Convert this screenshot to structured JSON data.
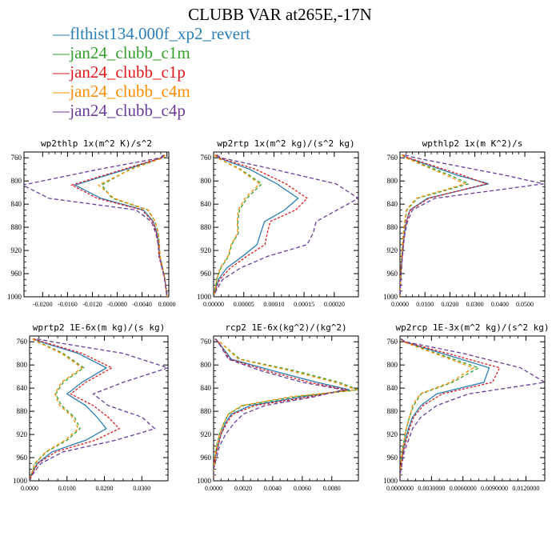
{
  "figure": {
    "title": "CLUBB VAR at265E,-17N"
  },
  "series": [
    {
      "name": "flthist134.000f_xp2_revert",
      "color": "#2a7fb6",
      "dash": ""
    },
    {
      "name": "jan24_clubb_c1m",
      "color": "#34a02c",
      "dash": "4,3"
    },
    {
      "name": "jan24_clubb_c1p",
      "color": "#e31a1c",
      "dash": "3,2"
    },
    {
      "name": "jan24_clubb_c4m",
      "color": "#ff8c00",
      "dash": "4,3"
    },
    {
      "name": "jan24_clubb_c4p",
      "color": "#6a3d9a",
      "dash": "5,3"
    }
  ],
  "chart_data": [
    {
      "type": "line",
      "title": "wp2thlp  1x(m^2 K)/s^2",
      "xlim": [
        -0.023,
        0.0003
      ],
      "ylim": [
        1000,
        750
      ],
      "xticks": [
        "-0.0200",
        "-0.0160",
        "-0.0120",
        "-0.0080",
        "-0.0040",
        "0.0000"
      ],
      "xtick_values": [
        -0.02,
        -0.016,
        -0.012,
        -0.008,
        -0.004,
        0.0
      ],
      "yticks": [
        "760",
        "800",
        "840",
        "880",
        "920",
        "960",
        "1000"
      ],
      "ytick_values": [
        760,
        800,
        840,
        880,
        920,
        960,
        1000
      ],
      "y": [
        755,
        760,
        780,
        807,
        830,
        850,
        870,
        890,
        910,
        930,
        950,
        970,
        990,
        1000
      ],
      "series": [
        {
          "values": [
            -0.0003,
            -0.0008,
            -0.0066,
            -0.0148,
            -0.0106,
            -0.0038,
            -0.0022,
            -0.0016,
            -0.0013,
            -0.0012,
            -0.0007,
            -0.0003,
            -0.0001,
            0.0
          ]
        },
        {
          "values": [
            -0.0003,
            -0.0006,
            -0.006,
            -0.0105,
            -0.0088,
            -0.0031,
            -0.0019,
            -0.0014,
            -0.0012,
            -0.0011,
            -0.0007,
            -0.0003,
            -0.0001,
            0.0
          ]
        },
        {
          "values": [
            -0.0003,
            -0.0009,
            -0.007,
            -0.0153,
            -0.0112,
            -0.004,
            -0.0023,
            -0.0017,
            -0.0014,
            -0.0013,
            -0.0008,
            -0.0003,
            -0.0001,
            0.0
          ]
        },
        {
          "values": [
            -0.0003,
            -0.0006,
            -0.0058,
            -0.011,
            -0.0085,
            -0.003,
            -0.0019,
            -0.0014,
            -0.0012,
            -0.0011,
            -0.0007,
            -0.0003,
            -0.0001,
            0.0
          ]
        },
        {
          "values": [
            -0.0006,
            -0.001,
            -0.011,
            -0.0232,
            -0.019,
            -0.005,
            -0.0025,
            -0.0018,
            -0.0014,
            -0.0012,
            -0.0008,
            -0.0004,
            -0.0001,
            0.0
          ]
        }
      ]
    },
    {
      "type": "line",
      "title": "wp2rtp  1x(m^2 kg)/(s^2 kg)",
      "xlim": [
        0,
        0.00024
      ],
      "ylim": [
        1000,
        750
      ],
      "xticks": [
        "0.00000",
        "0.00005",
        "0.00010",
        "0.00015",
        "0.00020"
      ],
      "xtick_values": [
        0,
        5e-05,
        0.0001,
        0.00015,
        0.0002
      ],
      "yticks": [
        "760",
        "800",
        "840",
        "880",
        "920",
        "960",
        "1000"
      ],
      "ytick_values": [
        760,
        800,
        840,
        880,
        920,
        960,
        1000
      ],
      "y": [
        755,
        760,
        780,
        805,
        830,
        850,
        870,
        890,
        910,
        930,
        950,
        970,
        990,
        1000
      ],
      "series": [
        {
          "values": [
            3e-06,
            8e-06,
            6e-05,
            0.000105,
            0.00014,
            0.000118,
            8.45e-05,
            7.8e-05,
            7.2e-05,
            4.8e-05,
            2.2e-05,
            8e-06,
            2e-06,
            0.0
          ]
        },
        {
          "values": [
            2e-06,
            6e-06,
            4.5e-05,
            8e-05,
            5.5e-05,
            4.3e-05,
            4e-05,
            4.1e-05,
            3e-05,
            2.5e-05,
            1.2e-05,
            5e-06,
            2e-06,
            0.0
          ]
        },
        {
          "values": [
            3e-06,
            9e-06,
            7e-05,
            0.00012,
            0.000155,
            0.000136,
            9.4e-05,
            8.9e-05,
            8.5e-05,
            5.5e-05,
            2.8e-05,
            1e-05,
            3e-06,
            0.0
          ]
        },
        {
          "values": [
            2e-06,
            6e-06,
            4.3e-05,
            7.6e-05,
            5.2e-05,
            4.1e-05,
            3.9e-05,
            4e-05,
            2.9e-05,
            2.4e-05,
            1.1e-05,
            5e-06,
            2e-06,
            0.0
          ]
        },
        {
          "values": [
            5e-06,
            1.2e-05,
            0.0001,
            0.000203,
            0.00024,
            0.000205,
            0.00017,
            0.000165,
            0.000155,
            9e-05,
            4.5e-05,
            1.5e-05,
            4e-06,
            0.0
          ]
        }
      ]
    },
    {
      "type": "line",
      "title": "wpthlp2  1x(m K^2)/s",
      "xlim": [
        0,
        0.058
      ],
      "ylim": [
        1000,
        750
      ],
      "xticks": [
        "0.0000",
        "0.0100",
        "0.0200",
        "0.0300",
        "0.0400",
        "0.0500"
      ],
      "xtick_values": [
        0,
        0.01,
        0.02,
        0.03,
        0.04,
        0.05
      ],
      "yticks": [
        "760",
        "800",
        "840",
        "880",
        "920",
        "960",
        "1000"
      ],
      "ytick_values": [
        760,
        800,
        840,
        880,
        920,
        960,
        1000
      ],
      "y": [
        755,
        760,
        790,
        805,
        830,
        850,
        870,
        890,
        910,
        930,
        950,
        970,
        990,
        1000
      ],
      "series": [
        {
          "values": [
            0.001,
            0.003,
            0.023,
            0.0355,
            0.011,
            0.004,
            0.0025,
            0.0018,
            0.0012,
            0.0008,
            0.0005,
            0.0003,
            0.0001,
            0.0
          ]
        },
        {
          "values": [
            0.0008,
            0.0025,
            0.02,
            0.0275,
            0.007,
            0.0028,
            0.002,
            0.0014,
            0.001,
            0.0007,
            0.0004,
            0.0002,
            0.0001,
            0.0
          ]
        },
        {
          "values": [
            0.0011,
            0.0032,
            0.025,
            0.0345,
            0.0115,
            0.0042,
            0.0026,
            0.0019,
            0.0013,
            0.0009,
            0.0005,
            0.0003,
            0.0001,
            0.0
          ]
        },
        {
          "values": [
            0.0007,
            0.0022,
            0.0185,
            0.026,
            0.0065,
            0.0026,
            0.0019,
            0.0013,
            0.001,
            0.0007,
            0.0004,
            0.0002,
            0.0001,
            0.0
          ]
        },
        {
          "values": [
            0.002,
            0.006,
            0.042,
            0.0575,
            0.014,
            0.005,
            0.003,
            0.002,
            0.0014,
            0.001,
            0.0006,
            0.0003,
            0.0001,
            0.0
          ]
        }
      ]
    },
    {
      "type": "line",
      "title": "wprtp2  1E-6x(m kg)/(s kg)",
      "xlim": [
        0,
        0.037
      ],
      "ylim": [
        1000,
        750
      ],
      "xticks": [
        "0.0000",
        "0.0100",
        "0.0200",
        "0.0300"
      ],
      "xtick_values": [
        0,
        0.01,
        0.02,
        0.03
      ],
      "yticks": [
        "760",
        "800",
        "840",
        "880",
        "920",
        "960",
        "1000"
      ],
      "ytick_values": [
        760,
        800,
        840,
        880,
        920,
        960,
        1000
      ],
      "y": [
        755,
        760,
        780,
        805,
        830,
        850,
        870,
        890,
        910,
        930,
        950,
        970,
        990,
        1000
      ],
      "series": [
        {
          "values": [
            0.001,
            0.003,
            0.013,
            0.0205,
            0.014,
            0.01,
            0.015,
            0.018,
            0.0205,
            0.015,
            0.006,
            0.002,
            0.0005,
            0.0
          ]
        },
        {
          "values": [
            0.0008,
            0.0022,
            0.009,
            0.0145,
            0.009,
            0.007,
            0.0085,
            0.012,
            0.0135,
            0.01,
            0.0045,
            0.0015,
            0.0004,
            0.0
          ]
        },
        {
          "values": [
            0.0011,
            0.0035,
            0.014,
            0.022,
            0.015,
            0.011,
            0.017,
            0.021,
            0.024,
            0.0175,
            0.007,
            0.0022,
            0.0005,
            0.0
          ]
        },
        {
          "values": [
            0.0008,
            0.002,
            0.0085,
            0.014,
            0.0085,
            0.0068,
            0.008,
            0.0115,
            0.013,
            0.0095,
            0.0043,
            0.0014,
            0.0004,
            0.0
          ]
        },
        {
          "values": [
            0.002,
            0.006,
            0.025,
            0.037,
            0.025,
            0.017,
            0.021,
            0.03,
            0.0335,
            0.023,
            0.009,
            0.003,
            0.0007,
            0.0
          ]
        }
      ]
    },
    {
      "type": "line",
      "title": "rcp2  1E-6x(kg^2)/(kg^2)",
      "xlim": [
        0,
        0.0098
      ],
      "ylim": [
        1000,
        750
      ],
      "xticks": [
        "0.0000",
        "0.0020",
        "0.0040",
        "0.0060",
        "0.0080"
      ],
      "xtick_values": [
        0,
        0.002,
        0.004,
        0.006,
        0.008
      ],
      "yticks": [
        "760",
        "800",
        "840",
        "880",
        "920",
        "960",
        "1000"
      ],
      "ytick_values": [
        760,
        800,
        840,
        880,
        920,
        960,
        1000
      ],
      "y": [
        755,
        760,
        790,
        810,
        830,
        843,
        855,
        870,
        885,
        900,
        920,
        940,
        960,
        980,
        1000
      ],
      "series": [
        {
          "values": [
            0.0001,
            0.0003,
            0.0012,
            0.004,
            0.007,
            0.0092,
            0.006,
            0.0025,
            0.0012,
            0.0008,
            0.0005,
            0.0003,
            0.0001,
            0.0,
            0.0
          ]
        },
        {
          "values": [
            0.0001,
            0.0004,
            0.0018,
            0.0055,
            0.0085,
            0.0098,
            0.0055,
            0.002,
            0.001,
            0.0007,
            0.0004,
            0.0002,
            0.0001,
            0.0,
            0.0
          ]
        },
        {
          "values": [
            0.0001,
            0.0003,
            0.0011,
            0.0036,
            0.0065,
            0.009,
            0.0065,
            0.0028,
            0.0013,
            0.0009,
            0.0005,
            0.0003,
            0.0001,
            0.0,
            0.0
          ]
        },
        {
          "values": [
            0.0001,
            0.0004,
            0.0017,
            0.0052,
            0.0082,
            0.0097,
            0.0052,
            0.0019,
            0.001,
            0.0007,
            0.0004,
            0.0002,
            0.0001,
            0.0,
            0.0
          ]
        },
        {
          "values": [
            0.0001,
            0.0003,
            0.001,
            0.0032,
            0.006,
            0.0088,
            0.0068,
            0.0035,
            0.002,
            0.0014,
            0.0008,
            0.0004,
            0.0002,
            0.0,
            0.0
          ]
        }
      ]
    },
    {
      "type": "line",
      "title": "wp2rcp  1E-3x(m^2 kg)/(s^2 kg)",
      "xlim": [
        0,
        0.0138
      ],
      "ylim": [
        1000,
        750
      ],
      "xticks": [
        "0.0000000",
        "0.0030000",
        "0.0060000",
        "0.0090000",
        "0.0120000"
      ],
      "xtick_values": [
        0,
        0.003,
        0.006,
        0.009,
        0.012
      ],
      "yticks": [
        "760",
        "800",
        "840",
        "880",
        "920",
        "960",
        "1000"
      ],
      "ytick_values": [
        760,
        800,
        840,
        880,
        920,
        960,
        1000
      ],
      "y": [
        755,
        760,
        780,
        805,
        830,
        850,
        870,
        890,
        910,
        930,
        950,
        970,
        990,
        1000
      ],
      "series": [
        {
          "values": [
            0.0001,
            0.0004,
            0.004,
            0.0085,
            0.008,
            0.0035,
            0.002,
            0.0012,
            0.0008,
            0.0005,
            0.0003,
            0.0001,
            0.0,
            0.0
          ]
        },
        {
          "values": [
            0.0001,
            0.0003,
            0.0035,
            0.0075,
            0.005,
            0.002,
            0.0013,
            0.0009,
            0.0006,
            0.0004,
            0.0002,
            0.0001,
            0.0,
            0.0
          ]
        },
        {
          "values": [
            0.0001,
            0.0004,
            0.0045,
            0.0095,
            0.0088,
            0.004,
            0.0022,
            0.0013,
            0.0009,
            0.0006,
            0.0003,
            0.0001,
            0.0,
            0.0
          ]
        },
        {
          "values": [
            0.0001,
            0.0003,
            0.0033,
            0.007,
            0.0048,
            0.0019,
            0.0012,
            0.0009,
            0.0006,
            0.0004,
            0.0002,
            0.0001,
            0.0,
            0.0
          ]
        },
        {
          "values": [
            0.0001,
            0.0005,
            0.006,
            0.0115,
            0.0138,
            0.0065,
            0.0035,
            0.002,
            0.0012,
            0.0008,
            0.0004,
            0.0002,
            0.0,
            0.0
          ]
        }
      ]
    }
  ]
}
